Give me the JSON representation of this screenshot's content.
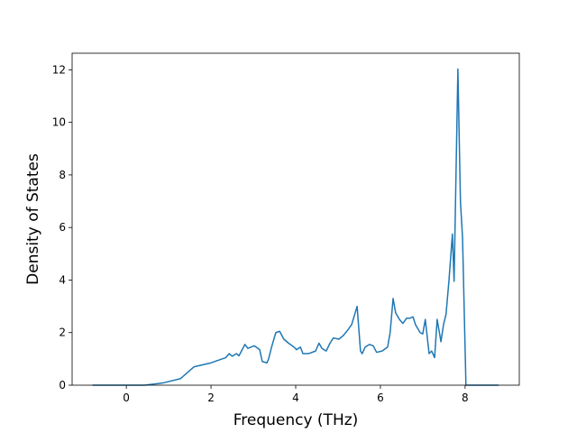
{
  "chart_data": {
    "type": "line",
    "x_label": "Frequency (THz)",
    "y_label": "Density of States",
    "xlim": [
      -1.28,
      9.28
    ],
    "ylim": [
      0,
      12.63
    ],
    "xticks": [
      0,
      2,
      4,
      6,
      8
    ],
    "yticks": [
      0,
      2,
      4,
      6,
      8,
      10,
      12
    ],
    "series": [
      {
        "color": "#1f77b4",
        "x": [
          -0.8,
          0.43,
          0.85,
          1.28,
          1.6,
          2.0,
          2.35,
          2.43,
          2.5,
          2.6,
          2.66,
          2.72,
          2.8,
          2.87,
          3.02,
          3.15,
          3.21,
          3.32,
          3.36,
          3.43,
          3.53,
          3.62,
          3.72,
          3.83,
          3.96,
          4.02,
          4.11,
          4.17,
          4.3,
          4.47,
          4.55,
          4.62,
          4.72,
          4.81,
          4.89,
          5.02,
          5.13,
          5.23,
          5.32,
          5.45,
          5.53,
          5.57,
          5.64,
          5.74,
          5.83,
          5.91,
          6.04,
          6.17,
          6.23,
          6.3,
          6.36,
          6.45,
          6.53,
          6.62,
          6.7,
          6.77,
          6.83,
          6.94,
          7.0,
          7.06,
          7.15,
          7.21,
          7.28,
          7.34,
          7.43,
          7.49,
          7.55,
          7.62,
          7.7,
          7.74,
          7.83,
          7.89,
          7.94,
          8.02,
          8.79
        ],
        "values": [
          0,
          0,
          0.08,
          0.25,
          0.7,
          0.85,
          1.05,
          1.2,
          1.1,
          1.2,
          1.12,
          1.3,
          1.55,
          1.4,
          1.5,
          1.35,
          0.9,
          0.85,
          1.0,
          1.45,
          2.0,
          2.05,
          1.75,
          1.6,
          1.45,
          1.35,
          1.45,
          1.2,
          1.2,
          1.3,
          1.6,
          1.4,
          1.3,
          1.6,
          1.8,
          1.75,
          1.9,
          2.1,
          2.3,
          3.0,
          1.3,
          1.2,
          1.45,
          1.55,
          1.5,
          1.25,
          1.3,
          1.45,
          2.0,
          3.3,
          2.75,
          2.5,
          2.35,
          2.55,
          2.55,
          2.6,
          2.3,
          2.0,
          1.95,
          2.5,
          1.2,
          1.3,
          1.05,
          2.5,
          1.65,
          2.3,
          2.7,
          4.0,
          5.75,
          3.95,
          12.03,
          7.0,
          5.6,
          0,
          0
        ]
      }
    ]
  }
}
